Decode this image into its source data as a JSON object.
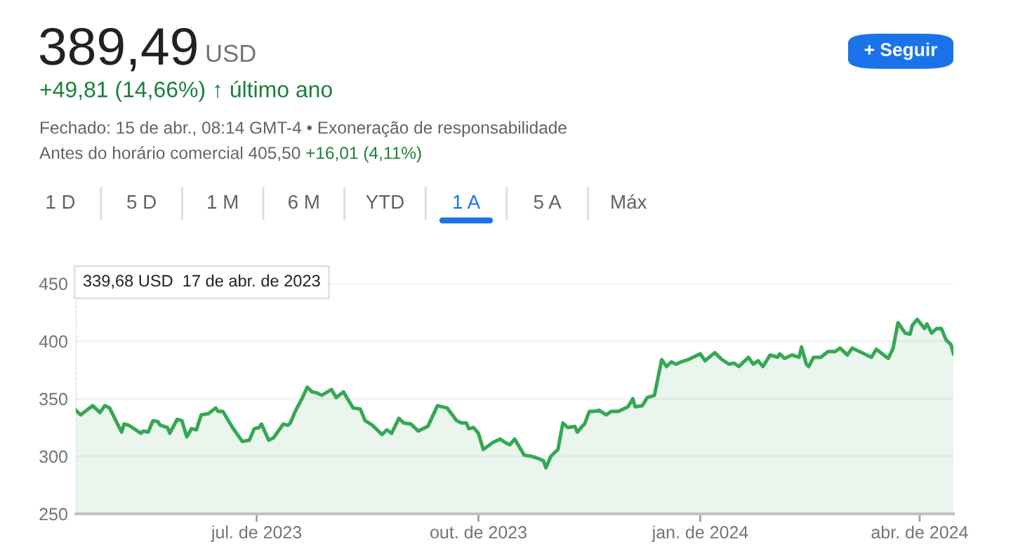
{
  "chart_data": {
    "type": "area",
    "x": [
      "2023-04-17",
      "2023-04-19",
      "2023-04-24",
      "2023-04-27",
      "2023-04-29",
      "2023-05-01",
      "2023-05-06",
      "2023-05-07",
      "2023-05-09",
      "2023-05-14",
      "2023-05-15",
      "2023-05-17",
      "2023-05-19",
      "2023-05-21",
      "2023-05-22",
      "2023-05-25",
      "2023-05-26",
      "2023-05-29",
      "2023-05-31",
      "2023-06-02",
      "2023-06-04",
      "2023-06-06",
      "2023-06-08",
      "2023-06-11",
      "2023-06-14",
      "2023-06-15",
      "2023-06-17",
      "2023-06-21",
      "2023-06-25",
      "2023-06-28",
      "2023-06-30",
      "2023-07-02",
      "2023-07-03",
      "2023-07-06",
      "2023-07-08",
      "2023-07-12",
      "2023-07-14",
      "2023-07-15",
      "2023-07-17",
      "2023-07-20",
      "2023-07-22",
      "2023-07-24",
      "2023-07-26",
      "2023-07-28",
      "2023-08-01",
      "2023-08-03",
      "2023-08-06",
      "2023-08-10",
      "2023-08-13",
      "2023-08-15",
      "2023-08-18",
      "2023-08-22",
      "2023-08-24",
      "2023-08-26",
      "2023-08-29",
      "2023-08-31",
      "2023-09-03",
      "2023-09-06",
      "2023-09-09",
      "2023-09-10",
      "2023-09-14",
      "2023-09-18",
      "2023-09-22",
      "2023-09-24",
      "2023-09-26",
      "2023-09-27",
      "2023-09-29",
      "2023-10-01",
      "2023-10-03",
      "2023-10-07",
      "2023-10-10",
      "2023-10-12",
      "2023-10-14",
      "2023-10-16",
      "2023-10-20",
      "2023-10-23",
      "2023-10-26",
      "2023-10-28",
      "2023-10-29",
      "2023-10-31",
      "2023-11-03",
      "2023-11-05",
      "2023-11-07",
      "2023-11-10",
      "2023-11-11",
      "2023-11-13",
      "2023-11-14",
      "2023-11-16",
      "2023-11-18",
      "2023-11-20",
      "2023-11-23",
      "2023-11-25",
      "2023-11-28",
      "2023-12-02",
      "2023-12-04",
      "2023-12-05",
      "2023-12-08",
      "2023-12-10",
      "2023-12-13",
      "2023-12-16",
      "2023-12-18",
      "2023-12-20",
      "2023-12-22",
      "2023-12-24",
      "2023-12-27",
      "2023-12-29",
      "2024-01-01",
      "2024-01-03",
      "2024-01-07",
      "2024-01-10",
      "2024-01-13",
      "2024-01-15",
      "2024-01-17",
      "2024-01-21",
      "2024-01-23",
      "2024-01-25",
      "2024-01-27",
      "2024-01-30",
      "2024-02-02",
      "2024-02-03",
      "2024-02-05",
      "2024-02-08",
      "2024-02-11",
      "2024-02-12",
      "2024-02-14",
      "2024-02-15",
      "2024-02-17",
      "2024-02-20",
      "2024-02-23",
      "2024-02-26",
      "2024-02-28",
      "2024-03-02",
      "2024-03-04",
      "2024-03-09",
      "2024-03-12",
      "2024-03-14",
      "2024-03-19",
      "2024-03-21",
      "2024-03-23",
      "2024-03-26",
      "2024-03-28",
      "2024-03-29",
      "2024-03-31",
      "2024-04-03",
      "2024-04-04",
      "2024-04-06",
      "2024-04-08",
      "2024-04-10",
      "2024-04-12",
      "2024-04-14",
      "2024-04-15"
    ],
    "series": [
      {
        "color": "#34a853",
        "values": [
          340,
          336,
          344,
          338,
          344,
          342,
          321,
          328,
          327,
          320,
          322,
          321,
          331,
          330,
          327,
          325,
          320,
          332,
          331,
          317,
          324,
          323,
          336,
          337,
          342,
          339,
          339,
          325,
          313,
          314,
          324,
          325,
          328,
          314,
          316,
          328,
          327,
          329,
          339,
          351,
          360,
          356,
          355,
          353,
          358,
          351,
          356,
          342,
          341,
          331,
          327,
          319,
          323,
          320,
          333,
          329,
          328,
          322,
          325,
          326,
          344,
          342,
          331,
          329,
          329,
          324,
          325,
          320,
          306,
          312,
          315,
          312,
          310,
          315,
          301,
          300,
          298,
          296,
          290,
          300,
          306,
          329,
          325,
          326,
          321,
          326,
          328,
          339,
          339,
          340,
          336,
          339,
          339,
          343,
          350,
          343,
          344,
          351,
          353,
          384,
          378,
          382,
          380,
          382,
          384,
          386,
          389,
          383,
          390,
          384,
          380,
          381,
          378,
          386,
          380,
          383,
          378,
          388,
          386,
          389,
          385,
          388,
          386,
          395,
          380,
          378,
          386,
          386,
          391,
          391,
          394,
          388,
          394,
          389,
          386,
          393,
          385,
          394,
          416,
          407,
          406,
          414,
          419,
          411,
          415,
          407,
          411,
          411,
          401,
          397,
          389
        ]
      }
    ],
    "xlim": [
      "2023-04-17",
      "2024-04-15"
    ],
    "xticks": [
      {
        "value": "2023-07-01",
        "label": "jul. de 2023"
      },
      {
        "value": "2023-10-01",
        "label": "out. de 2023"
      },
      {
        "value": "2024-01-01",
        "label": "jan. de 2024"
      },
      {
        "value": "2024-04-01",
        "label": "abr. de 2024"
      }
    ],
    "ylim": [
      250,
      450
    ],
    "yticks": [
      250,
      300,
      350,
      400,
      450
    ],
    "grid": "y",
    "marker": "none",
    "line_style": "solid",
    "ref_lines": [
      {
        "axis": "x",
        "value": "2023-04-17",
        "color": "#9aa0a6",
        "line_style": "dotted"
      }
    ],
    "annotations": [
      "389,49",
      "USD",
      "+49,81 (14,66%) ↑ último ano",
      "Fechado: 15 de abr., 08:14 GMT-4 • Exoneração de responsabilidade",
      "Antes do horário comercial 405,50",
      "+16,01 (4,11%)",
      "+ Seguir",
      "1 D",
      "5 D",
      "1 M",
      "6 M",
      "YTD",
      "1 A",
      "5 A",
      "Máx",
      "339,68 USD  17 de abr. de 2023"
    ]
  }
}
